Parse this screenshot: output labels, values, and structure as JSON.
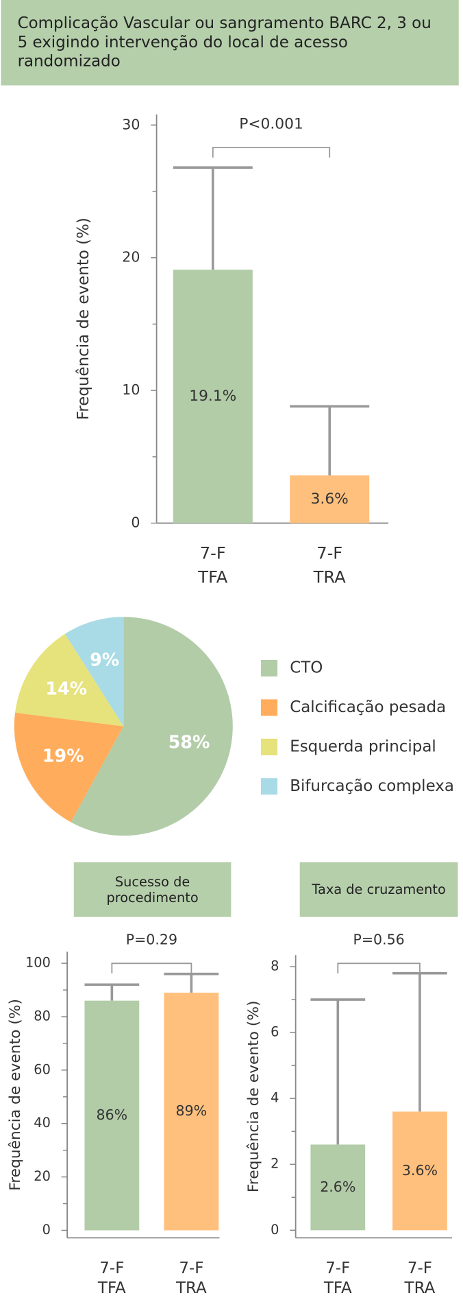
{
  "chart_data": [
    {
      "type": "bar",
      "title": "Complicação Vascular ou sangramento BARC 2, 3 ou 5 exigindo intervenção do local de acesso randomizado",
      "ylabel": "Frequência de evento (%)",
      "categories": [
        "7-F\nTFA",
        "7-F\nTRA"
      ],
      "values": [
        19.1,
        3.6
      ],
      "value_labels": [
        "19.1%",
        "3.6%"
      ],
      "errors": [
        7.7,
        5.2
      ],
      "colors": [
        "#b2cca8",
        "#ffc07e"
      ],
      "annotation": "P<0.001",
      "ylim": [
        0,
        30.8
      ],
      "yticks": [
        0,
        10,
        20,
        30
      ],
      "minor_yticks": [
        5,
        15,
        25
      ]
    },
    {
      "type": "pie",
      "labels": [
        "CTO",
        "Calcificação pesada",
        "Esquerda principal",
        "Bifurcação complexa"
      ],
      "values": [
        58,
        19,
        14,
        9
      ],
      "value_labels": [
        "58%",
        "19%",
        "14%",
        "9%"
      ],
      "colors": [
        "#b2cca8",
        "#ffad5c",
        "#e6e27c",
        "#a9dbe6"
      ],
      "legend": "right"
    },
    {
      "type": "bar",
      "title": "Sucesso de procedimento",
      "ylabel": "Frequência de evento (%)",
      "categories": [
        "7-F\nTFA",
        "7-F\nTRA"
      ],
      "values": [
        86,
        89
      ],
      "value_labels": [
        "86%",
        "89%"
      ],
      "errors": [
        6,
        7
      ],
      "colors": [
        "#b2cca8",
        "#ffc07e"
      ],
      "annotation": "P=0.29",
      "ylim": [
        -2.8,
        104.3
      ],
      "yticks": [
        0,
        20,
        40,
        60,
        80,
        100
      ],
      "minor_yticks": [
        10,
        30,
        50,
        70,
        90
      ]
    },
    {
      "type": "bar",
      "title": "Taxa de cruzamento",
      "ylabel": "Frequência de evento (%)",
      "categories": [
        "7-F\nTFA",
        "7-F\nTRA"
      ],
      "values": [
        2.6,
        3.6
      ],
      "value_labels": [
        "2.6%",
        "3.6%"
      ],
      "errors": [
        4.4,
        4.2
      ],
      "colors": [
        "#b2cca8",
        "#ffc07e"
      ],
      "annotation": "P=0.56",
      "ylim": [
        -0.23,
        8.35
      ],
      "yticks": [
        0,
        2,
        4,
        6,
        8
      ],
      "minor_yticks": [
        1,
        3,
        5,
        7
      ]
    }
  ]
}
